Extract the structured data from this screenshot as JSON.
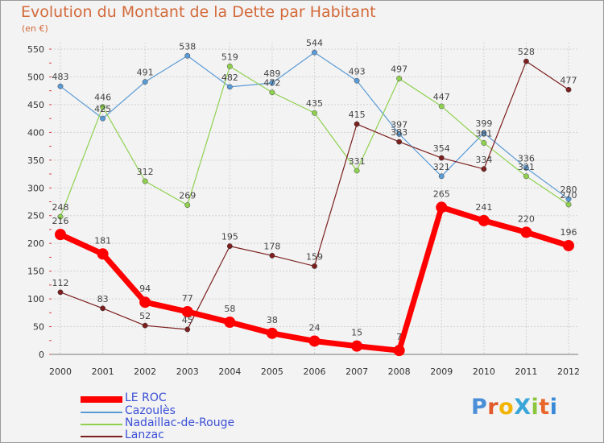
{
  "title": "Evolution du Montant de la Dette par Habitant",
  "subtitle": "(en €)",
  "logo": "ProXiti",
  "chart_data": {
    "type": "line",
    "x": [
      "2000",
      "2001",
      "2002",
      "2003",
      "2004",
      "2005",
      "2006",
      "2007",
      "2008",
      "2009",
      "2010",
      "2011",
      "2012"
    ],
    "ylim": [
      0,
      550
    ],
    "yticks": [
      0,
      50,
      100,
      150,
      200,
      250,
      300,
      350,
      400,
      450,
      500,
      550
    ],
    "grid": true,
    "legend": "bottom-left",
    "series": [
      {
        "name": "LE ROC",
        "color": "#ff0000",
        "values": [
          216,
          181,
          94,
          77,
          58,
          38,
          24,
          15,
          7,
          265,
          241,
          220,
          196
        ]
      },
      {
        "name": "Cazoulès",
        "color": "#5b9bd5",
        "values": [
          483,
          425,
          491,
          538,
          482,
          489,
          544,
          493,
          397,
          321,
          399,
          336,
          280
        ]
      },
      {
        "name": "Nadaillac-de-Rouge",
        "color": "#8fd14f",
        "values": [
          248,
          446,
          312,
          269,
          519,
          472,
          435,
          331,
          497,
          447,
          381,
          321,
          270
        ]
      },
      {
        "name": "Lanzac",
        "color": "#7b1f1f",
        "values": [
          112,
          83,
          52,
          45,
          195,
          178,
          159,
          415,
          383,
          354,
          334,
          528,
          477
        ]
      }
    ]
  }
}
